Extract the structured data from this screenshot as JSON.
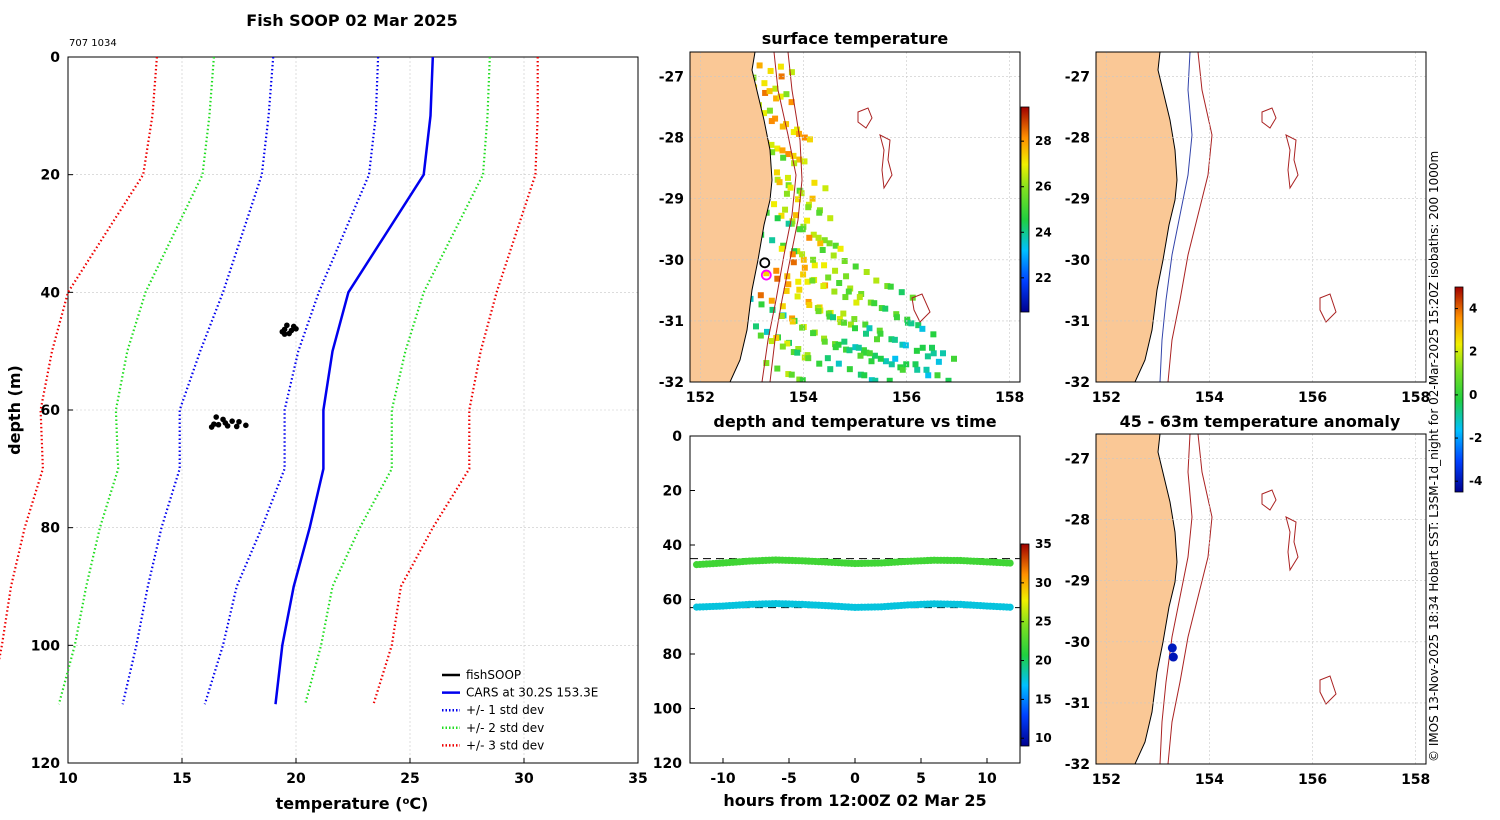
{
  "chart_data": [
    {
      "id": "profile",
      "type": "line",
      "title": "Fish SOOP 02 Mar 2025",
      "subtitle": "707 1034",
      "xlabel": "temperature (",
      "xlabel_unit": "o",
      "xlabel_tail": "C)",
      "ylabel": "depth (m)",
      "xlim": [
        10,
        35
      ],
      "ylim": [
        0,
        120
      ],
      "xticks": [
        10,
        15,
        20,
        25,
        30,
        35
      ],
      "yticks": [
        0,
        20,
        40,
        60,
        80,
        100,
        120
      ],
      "depths": [
        0,
        10,
        20,
        40,
        50,
        60,
        70,
        80,
        90,
        100,
        110
      ],
      "series": [
        {
          "name": "CARS at 30.2S 153.3E",
          "color": "#0000ee",
          "style": "solid",
          "values": [
            26.0,
            25.9,
            25.6,
            22.3,
            21.6,
            21.2,
            21.2,
            20.6,
            19.9,
            19.4,
            19.1
          ]
        },
        {
          "name": "+/- 1 std dev (lo)",
          "color": "#0000ee",
          "style": "dotted",
          "values": [
            19.0,
            18.8,
            18.5,
            16.8,
            15.8,
            14.9,
            14.9,
            14.1,
            13.5,
            13.0,
            12.4
          ]
        },
        {
          "name": "+/- 1 std dev (hi)",
          "color": "#0000ee",
          "style": "dotted",
          "values": [
            23.6,
            23.5,
            23.2,
            21.0,
            20.1,
            19.5,
            19.5,
            18.5,
            17.4,
            16.8,
            16.0
          ]
        },
        {
          "name": "+/- 2 std dev (lo)",
          "color": "#22dd22",
          "style": "dotted",
          "values": [
            16.4,
            16.2,
            15.9,
            13.4,
            12.6,
            12.1,
            12.2,
            11.4,
            10.8,
            10.3,
            9.6
          ]
        },
        {
          "name": "+/- 2 std dev (hi)",
          "color": "#22dd22",
          "style": "dotted",
          "values": [
            28.5,
            28.4,
            28.2,
            25.6,
            24.8,
            24.2,
            24.2,
            22.8,
            21.6,
            21.1,
            20.4
          ]
        },
        {
          "name": "+/- 3 std dev (lo)",
          "color": "#ee0000",
          "style": "dotted",
          "values": [
            13.9,
            13.7,
            13.3,
            10.0,
            9.3,
            8.8,
            8.9,
            8.1,
            7.5,
            7.1,
            6.6
          ]
        },
        {
          "name": "+/- 3 std dev (hi)",
          "color": "#ee0000",
          "style": "dotted",
          "values": [
            30.6,
            30.6,
            30.5,
            28.8,
            28.1,
            27.6,
            27.6,
            26.0,
            24.6,
            24.2,
            23.4
          ]
        }
      ],
      "obs": [
        {
          "t": 19.6,
          "d": 45.6
        },
        {
          "t": 19.9,
          "d": 45.8
        },
        {
          "t": 19.5,
          "d": 46.3
        },
        {
          "t": 19.8,
          "d": 46.5
        },
        {
          "t": 19.4,
          "d": 46.7
        },
        {
          "t": 19.7,
          "d": 47.0
        },
        {
          "t": 20.0,
          "d": 46.2
        },
        {
          "t": 19.5,
          "d": 47.1
        },
        {
          "t": 16.5,
          "d": 61.2
        },
        {
          "t": 16.8,
          "d": 61.6
        },
        {
          "t": 17.2,
          "d": 61.9
        },
        {
          "t": 16.4,
          "d": 62.4
        },
        {
          "t": 16.9,
          "d": 62.2
        },
        {
          "t": 17.5,
          "d": 62.0
        },
        {
          "t": 17.8,
          "d": 62.6
        },
        {
          "t": 16.3,
          "d": 62.9
        },
        {
          "t": 17.0,
          "d": 62.7
        },
        {
          "t": 17.4,
          "d": 62.8
        },
        {
          "t": 16.6,
          "d": 62.5
        }
      ],
      "legend": [
        {
          "label": "fishSOOP",
          "color": "#000000",
          "style": "solid"
        },
        {
          "label": "CARS at 30.2S 153.3E",
          "color": "#0000ee",
          "style": "solid"
        },
        {
          "label": "+/- 1 std dev",
          "color": "#0000ee",
          "style": "dotted"
        },
        {
          "label": "+/- 2 std dev",
          "color": "#22dd22",
          "style": "dotted"
        },
        {
          "label": "+/- 3 std dev",
          "color": "#ee0000",
          "style": "dotted"
        }
      ],
      "legend_position": "bottom-right"
    },
    {
      "id": "sst-map",
      "type": "heatmap",
      "title": "surface temperature",
      "xlim": [
        151.8,
        158.2
      ],
      "ylim": [
        -32,
        -26.6
      ],
      "xticks": [
        152,
        154,
        156,
        158
      ],
      "yticks": [
        -27,
        -28,
        -29,
        -30,
        -31,
        -32
      ],
      "colorbar": {
        "min": 20.5,
        "max": 29.5,
        "ticks": [
          22,
          24,
          26,
          28
        ]
      },
      "cells": [
        {
          "lon": 153.15,
          "lat": -27.0,
          "v": 27.8
        },
        {
          "lon": 153.35,
          "lat": -27.2,
          "v": 26.5
        },
        {
          "lon": 153.45,
          "lat": -27.6,
          "v": 27.5
        },
        {
          "lon": 153.6,
          "lat": -28.0,
          "v": 27.6
        },
        {
          "lon": 153.7,
          "lat": -28.3,
          "v": 27.3
        },
        {
          "lon": 153.5,
          "lat": -28.6,
          "v": 25.8
        },
        {
          "lon": 153.75,
          "lat": -29.0,
          "v": 27.0
        },
        {
          "lon": 154.0,
          "lat": -29.1,
          "v": 26.6
        },
        {
          "lon": 154.2,
          "lat": -29.5,
          "v": 25.9
        },
        {
          "lon": 153.5,
          "lat": -29.5,
          "v": 24.5
        },
        {
          "lon": 153.9,
          "lat": -30.0,
          "v": 27.6
        },
        {
          "lon": 154.4,
          "lat": -30.0,
          "v": 26.4
        },
        {
          "lon": 154.8,
          "lat": -30.2,
          "v": 25.7
        },
        {
          "lon": 153.6,
          "lat": -30.4,
          "v": 27.9
        },
        {
          "lon": 154.1,
          "lat": -30.6,
          "v": 27.4
        },
        {
          "lon": 154.6,
          "lat": -30.7,
          "v": 26.2
        },
        {
          "lon": 155.2,
          "lat": -30.7,
          "v": 25.8
        },
        {
          "lon": 155.8,
          "lat": -30.8,
          "v": 24.9
        },
        {
          "lon": 153.4,
          "lat": -31.0,
          "v": 24.2
        },
        {
          "lon": 153.9,
          "lat": -31.1,
          "v": 26.8
        },
        {
          "lon": 154.4,
          "lat": -31.2,
          "v": 25.6
        },
        {
          "lon": 155.0,
          "lat": -31.3,
          "v": 24.7
        },
        {
          "lon": 155.6,
          "lat": -31.3,
          "v": 24.3
        },
        {
          "lon": 156.2,
          "lat": -31.4,
          "v": 24.0
        },
        {
          "lon": 153.6,
          "lat": -31.6,
          "v": 25.9
        },
        {
          "lon": 154.2,
          "lat": -31.7,
          "v": 24.8
        },
        {
          "lon": 154.9,
          "lat": -31.7,
          "v": 24.2
        },
        {
          "lon": 155.5,
          "lat": -31.8,
          "v": 24.5
        },
        {
          "lon": 156.1,
          "lat": -31.8,
          "v": 23.9
        },
        {
          "lon": 156.6,
          "lat": -31.8,
          "v": 24.4
        }
      ],
      "markers": [
        {
          "lon": 153.25,
          "lat": -30.05,
          "color": "#000000"
        },
        {
          "lon": 153.28,
          "lat": -30.25,
          "color": "#ff00ff"
        }
      ]
    },
    {
      "id": "isobath-map",
      "type": "map",
      "xlim": [
        151.8,
        158.2
      ],
      "ylim": [
        -32,
        -26.6
      ],
      "xticks": [
        152,
        154,
        156,
        158
      ],
      "yticks": [
        -27,
        -28,
        -29,
        -30,
        -31,
        -32
      ]
    },
    {
      "id": "depth-time",
      "type": "scatter",
      "title": "depth and temperature vs time",
      "xlabel": "hours from 12:00Z 02 Mar 25",
      "xlim": [
        -12.5,
        12.5
      ],
      "ylim": [
        0,
        120
      ],
      "xticks": [
        -10,
        -5,
        0,
        5,
        10
      ],
      "yticks": [
        0,
        20,
        40,
        60,
        80,
        100,
        120
      ],
      "ref_depths": [
        45,
        63
      ],
      "series": [
        {
          "name": "upper",
          "temp": 22.0,
          "t": [
            -12,
            -10,
            -8,
            -6,
            -4,
            -2,
            0,
            2,
            4,
            6,
            8,
            10,
            12
          ],
          "d": [
            47.2,
            46.6,
            45.9,
            45.5,
            45.8,
            46.3,
            46.8,
            46.6,
            46.0,
            45.6,
            45.7,
            46.2,
            46.7
          ]
        },
        {
          "name": "lower",
          "temp": 17.5,
          "t": [
            -12,
            -10,
            -8,
            -6,
            -4,
            -2,
            0,
            2,
            4,
            6,
            8,
            10,
            12
          ],
          "d": [
            62.8,
            62.4,
            61.8,
            61.5,
            61.8,
            62.3,
            62.9,
            62.7,
            62.0,
            61.6,
            61.8,
            62.4,
            62.9
          ]
        }
      ],
      "colorbar": {
        "min": 9,
        "max": 35,
        "ticks": [
          10,
          15,
          20,
          25,
          30,
          35
        ]
      }
    },
    {
      "id": "anomaly-map",
      "type": "map",
      "title": "45 - 63m temperature anomaly",
      "xlim": [
        151.8,
        158.2
      ],
      "ylim": [
        -32,
        -26.6
      ],
      "xticks": [
        152,
        154,
        156,
        158
      ],
      "yticks": [
        -27,
        -28,
        -29,
        -30,
        -31,
        -32
      ],
      "points": [
        {
          "lon": 153.28,
          "lat": -30.1,
          "anomaly": -3.9
        },
        {
          "lon": 153.3,
          "lat": -30.25,
          "anomaly": -4.0
        }
      ],
      "colorbar": {
        "min": -4.5,
        "max": 5.0,
        "ticks": [
          -4,
          -2,
          0,
          2,
          4
        ]
      }
    }
  ],
  "credit": "© IMOS 13-Nov-2025 18:34 Hobart SST: L3SM-1d_night for 02-Mar-2025 15:20Z isobaths: 200  1000m",
  "colors": {
    "land": "#fac896",
    "isobath_200": "#3344aa",
    "isobath_1000": "#aa2222",
    "grid": "#c8c8c8"
  }
}
